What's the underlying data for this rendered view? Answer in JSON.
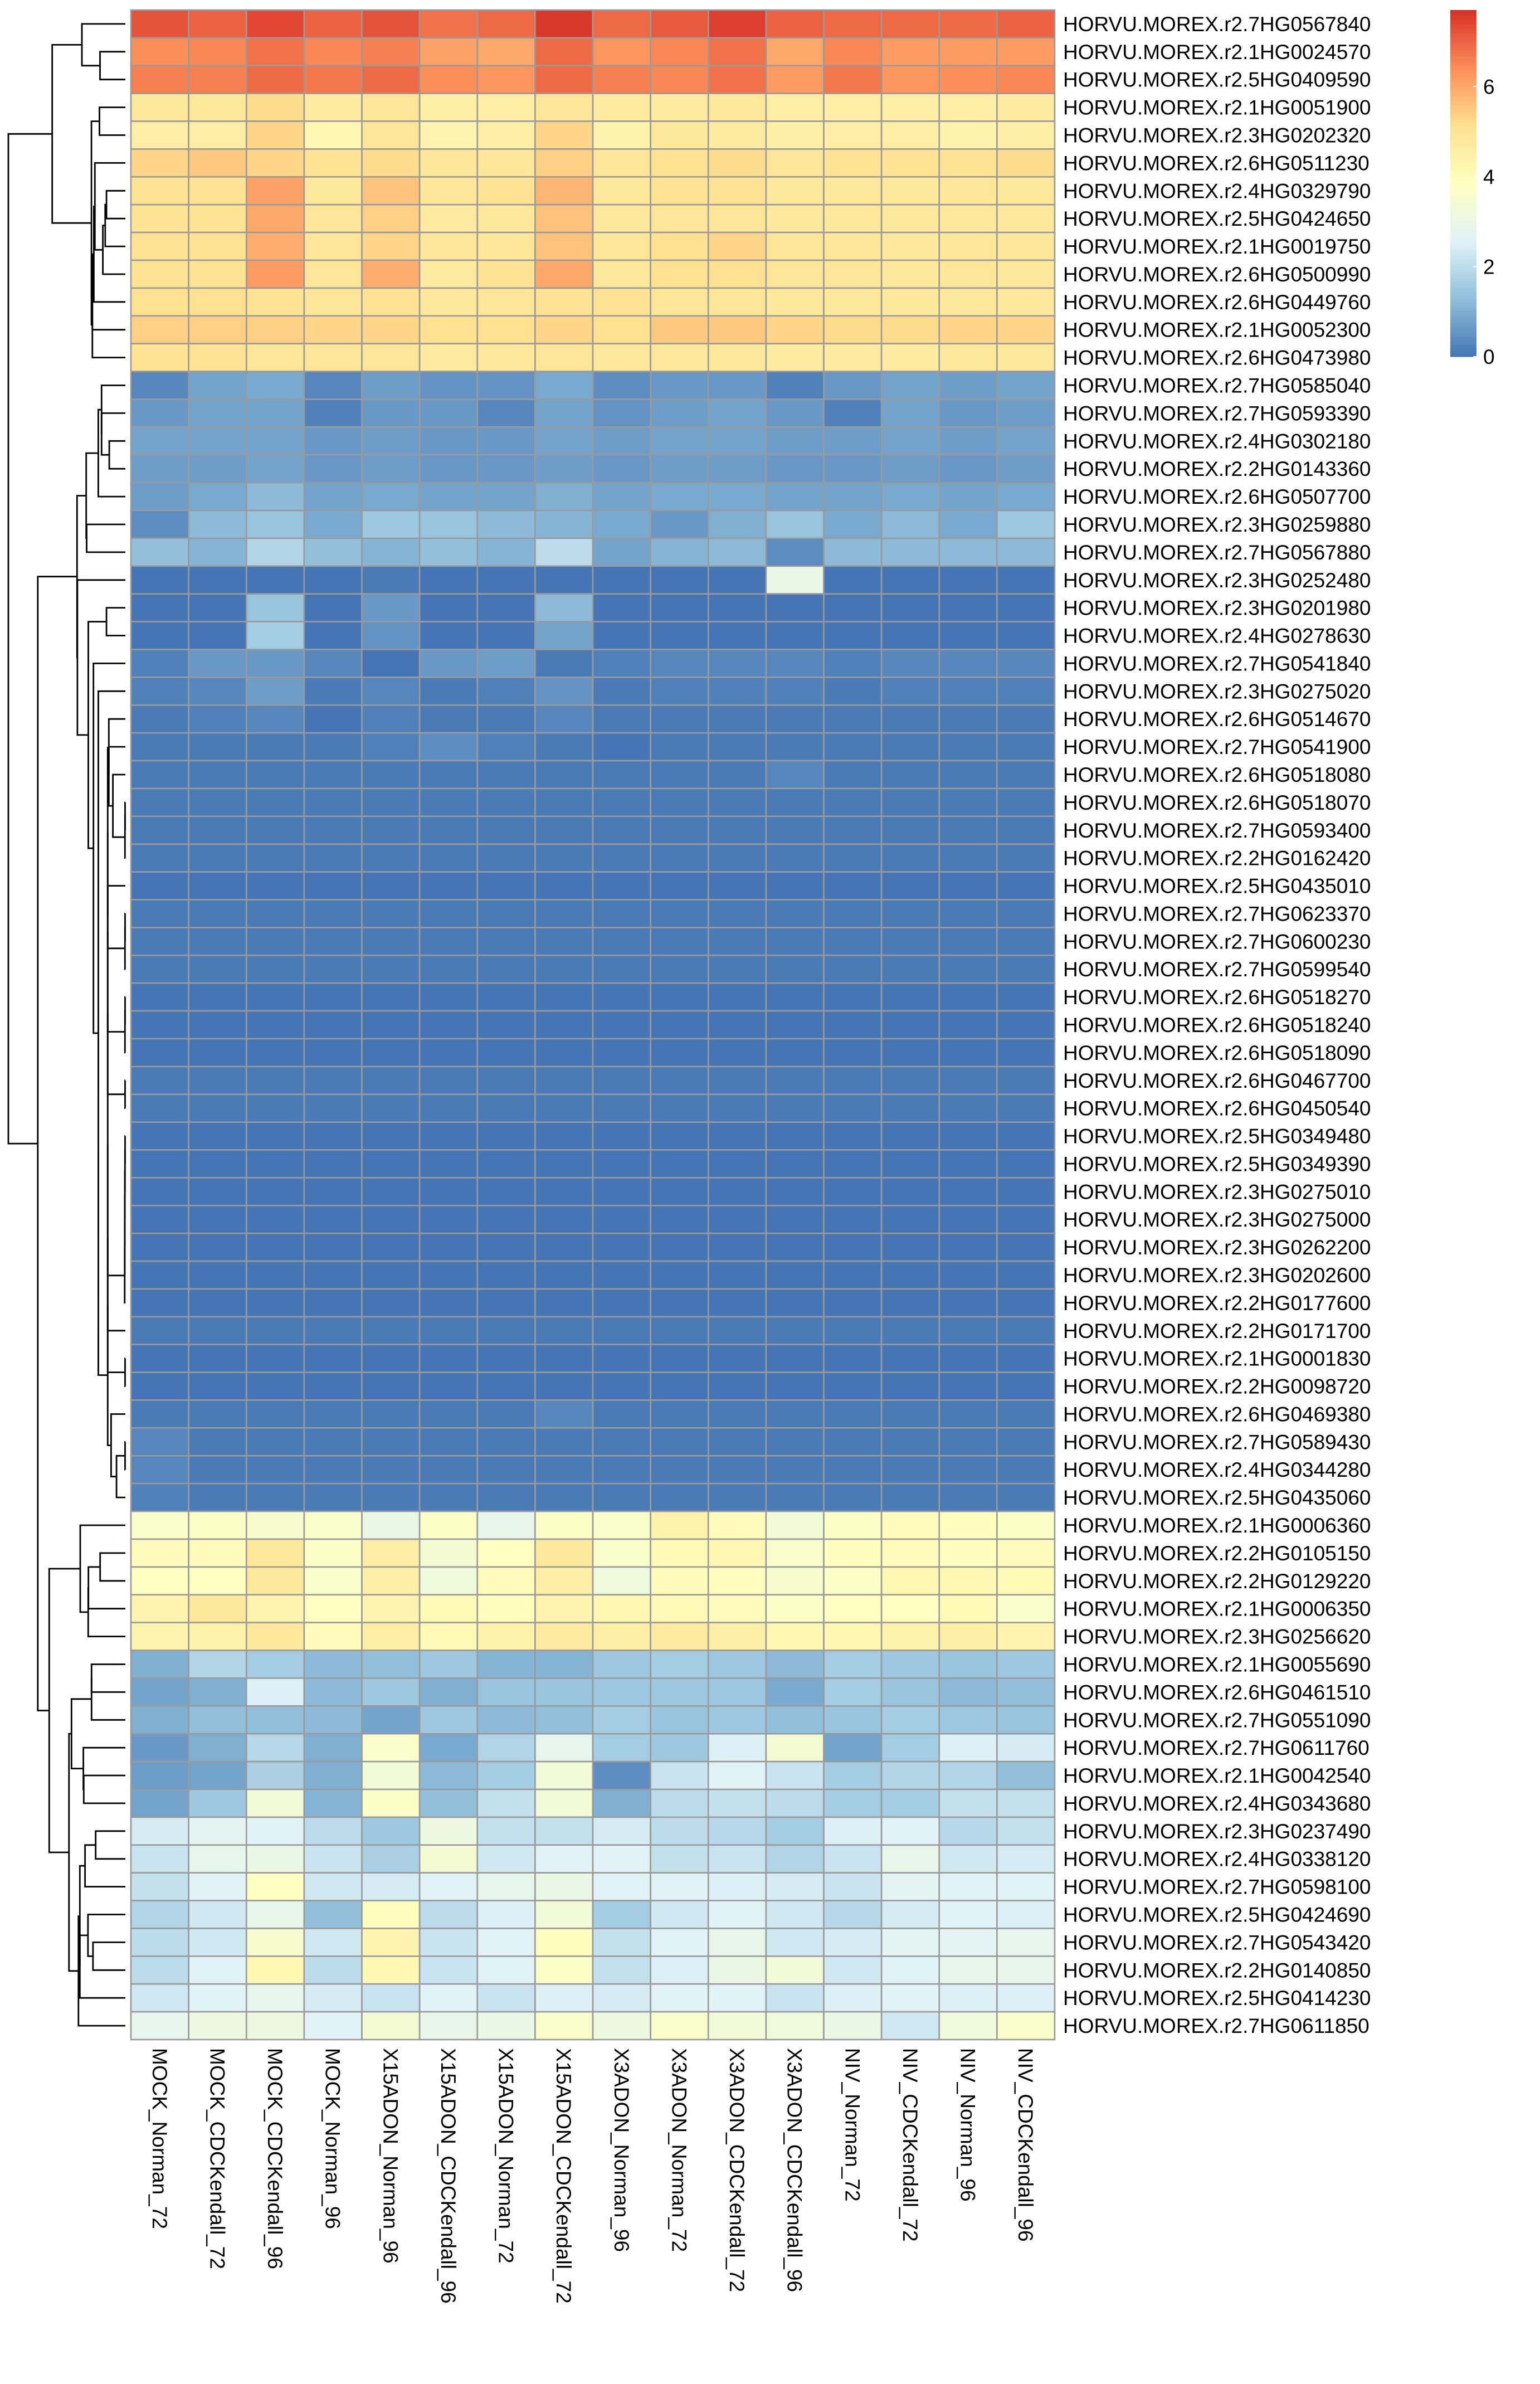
{
  "chart_data": {
    "type": "heatmap",
    "title": "",
    "xlabel": "",
    "ylabel": "",
    "columns": [
      "MOCK_Norman_72",
      "MOCK_CDCKendall_72",
      "MOCK_CDCKendall_96",
      "MOCK_Norman_96",
      "X15ADON_Norman_96",
      "X15ADON_CDCKendall_96",
      "X15ADON_Norman_72",
      "X15ADON_CDCKendall_72",
      "X3ADON_Norman_96",
      "X3ADON_Norman_72",
      "X3ADON_CDCKendall_72",
      "X3ADON_CDCKendall_96",
      "NIV_Norman_72",
      "NIV_CDCKendall_72",
      "NIV_Norman_96",
      "NIV_CDCKendall_96"
    ],
    "rows": [
      "HORVU.MOREX.r2.7HG0567840",
      "HORVU.MOREX.r2.1HG0024570",
      "HORVU.MOREX.r2.5HG0409590",
      "HORVU.MOREX.r2.1HG0051900",
      "HORVU.MOREX.r2.3HG0202320",
      "HORVU.MOREX.r2.6HG0511230",
      "HORVU.MOREX.r2.4HG0329790",
      "HORVU.MOREX.r2.5HG0424650",
      "HORVU.MOREX.r2.1HG0019750",
      "HORVU.MOREX.r2.6HG0500990",
      "HORVU.MOREX.r2.6HG0449760",
      "HORVU.MOREX.r2.1HG0052300",
      "HORVU.MOREX.r2.6HG0473980",
      "HORVU.MOREX.r2.7HG0585040",
      "HORVU.MOREX.r2.7HG0593390",
      "HORVU.MOREX.r2.4HG0302180",
      "HORVU.MOREX.r2.2HG0143360",
      "HORVU.MOREX.r2.6HG0507700",
      "HORVU.MOREX.r2.3HG0259880",
      "HORVU.MOREX.r2.7HG0567880",
      "HORVU.MOREX.r2.3HG0252480",
      "HORVU.MOREX.r2.3HG0201980",
      "HORVU.MOREX.r2.4HG0278630",
      "HORVU.MOREX.r2.7HG0541840",
      "HORVU.MOREX.r2.3HG0275020",
      "HORVU.MOREX.r2.6HG0514670",
      "HORVU.MOREX.r2.7HG0541900",
      "HORVU.MOREX.r2.6HG0518080",
      "HORVU.MOREX.r2.6HG0518070",
      "HORVU.MOREX.r2.7HG0593400",
      "HORVU.MOREX.r2.2HG0162420",
      "HORVU.MOREX.r2.5HG0435010",
      "HORVU.MOREX.r2.7HG0623370",
      "HORVU.MOREX.r2.7HG0600230",
      "HORVU.MOREX.r2.7HG0599540",
      "HORVU.MOREX.r2.6HG0518270",
      "HORVU.MOREX.r2.6HG0518240",
      "HORVU.MOREX.r2.6HG0518090",
      "HORVU.MOREX.r2.6HG0467700",
      "HORVU.MOREX.r2.6HG0450540",
      "HORVU.MOREX.r2.5HG0349480",
      "HORVU.MOREX.r2.5HG0349390",
      "HORVU.MOREX.r2.3HG0275010",
      "HORVU.MOREX.r2.3HG0275000",
      "HORVU.MOREX.r2.3HG0262200",
      "HORVU.MOREX.r2.3HG0202600",
      "HORVU.MOREX.r2.2HG0177600",
      "HORVU.MOREX.r2.2HG0171700",
      "HORVU.MOREX.r2.1HG0001830",
      "HORVU.MOREX.r2.2HG0098720",
      "HORVU.MOREX.r2.6HG0469380",
      "HORVU.MOREX.r2.7HG0589430",
      "HORVU.MOREX.r2.4HG0344280",
      "HORVU.MOREX.r2.5HG0435060",
      "HORVU.MOREX.r2.1HG0006360",
      "HORVU.MOREX.r2.2HG0105150",
      "HORVU.MOREX.r2.2HG0129220",
      "HORVU.MOREX.r2.1HG0006350",
      "HORVU.MOREX.r2.3HG0256620",
      "HORVU.MOREX.r2.1HG0055690",
      "HORVU.MOREX.r2.6HG0461510",
      "HORVU.MOREX.r2.7HG0551090",
      "HORVU.MOREX.r2.7HG0611760",
      "HORVU.MOREX.r2.1HG0042540",
      "HORVU.MOREX.r2.4HG0343680",
      "HORVU.MOREX.r2.3HG0237490",
      "HORVU.MOREX.r2.4HG0338120",
      "HORVU.MOREX.r2.7HG0598100",
      "HORVU.MOREX.r2.5HG0424690",
      "HORVU.MOREX.r2.7HG0543420",
      "HORVU.MOREX.r2.2HG0140850",
      "HORVU.MOREX.r2.5HG0414230",
      "HORVU.MOREX.r2.7HG0611850"
    ],
    "values": [
      [
        7.2,
        7.0,
        7.4,
        7.0,
        7.2,
        6.8,
        6.9,
        7.6,
        6.9,
        7.1,
        7.5,
        7.0,
        6.9,
        6.9,
        6.9,
        7.0
      ],
      [
        6.4,
        6.5,
        6.8,
        6.5,
        6.6,
        6.1,
        6.0,
        6.9,
        6.3,
        6.5,
        6.8,
        6.0,
        6.5,
        6.2,
        6.2,
        6.2
      ],
      [
        6.6,
        6.6,
        6.9,
        6.7,
        6.9,
        6.4,
        6.3,
        6.9,
        6.6,
        6.5,
        6.8,
        6.2,
        6.7,
        6.3,
        6.4,
        6.5
      ],
      [
        4.8,
        4.8,
        5.2,
        4.7,
        4.9,
        4.5,
        4.6,
        4.9,
        4.7,
        4.7,
        4.8,
        4.6,
        4.6,
        4.6,
        4.6,
        4.7
      ],
      [
        4.6,
        4.6,
        5.3,
        4.2,
        4.9,
        4.3,
        4.6,
        5.3,
        4.4,
        4.8,
        4.7,
        4.5,
        4.6,
        4.6,
        4.4,
        4.5
      ],
      [
        5.3,
        5.5,
        5.3,
        5.0,
        5.2,
        4.9,
        4.9,
        5.4,
        4.9,
        5.1,
        5.2,
        4.9,
        5.0,
        5.0,
        5.0,
        5.2
      ],
      [
        5.0,
        5.0,
        6.1,
        4.8,
        5.6,
        4.9,
        5.0,
        5.8,
        4.8,
        5.0,
        5.0,
        4.8,
        4.8,
        4.8,
        4.9,
        4.8
      ],
      [
        5.0,
        5.0,
        6.0,
        4.9,
        5.4,
        4.7,
        4.8,
        5.6,
        4.8,
        4.9,
        4.9,
        4.8,
        4.8,
        4.8,
        4.8,
        4.8
      ],
      [
        5.0,
        5.0,
        5.9,
        4.9,
        5.3,
        4.9,
        4.9,
        5.6,
        4.9,
        5.1,
        5.3,
        4.9,
        4.9,
        4.8,
        4.9,
        4.9
      ],
      [
        5.0,
        5.0,
        6.2,
        4.9,
        5.9,
        4.7,
        5.0,
        6.0,
        4.8,
        5.1,
        5.1,
        4.9,
        4.9,
        4.8,
        4.9,
        4.8
      ],
      [
        5.1,
        5.1,
        5.0,
        4.9,
        5.0,
        4.8,
        4.9,
        5.0,
        5.0,
        4.9,
        4.9,
        4.8,
        4.8,
        4.8,
        4.8,
        4.8
      ],
      [
        5.4,
        5.4,
        5.4,
        5.3,
        5.3,
        5.1,
        5.1,
        5.3,
        5.1,
        5.5,
        5.5,
        5.3,
        5.2,
        5.2,
        5.3,
        5.3
      ],
      [
        5.0,
        5.0,
        4.9,
        4.9,
        4.9,
        4.7,
        4.8,
        4.9,
        4.8,
        4.8,
        4.8,
        4.7,
        4.7,
        4.7,
        4.8,
        4.8
      ],
      [
        0.3,
        0.8,
        0.9,
        0.3,
        0.7,
        0.5,
        0.5,
        0.9,
        0.4,
        0.6,
        0.6,
        0.2,
        0.6,
        0.8,
        0.7,
        0.8
      ],
      [
        0.6,
        0.8,
        0.8,
        0.2,
        0.6,
        0.6,
        0.3,
        0.8,
        0.5,
        0.7,
        0.8,
        0.6,
        0.2,
        0.8,
        0.6,
        0.7
      ],
      [
        0.8,
        0.8,
        0.8,
        0.6,
        0.7,
        0.6,
        0.6,
        0.8,
        0.7,
        0.8,
        0.8,
        0.7,
        0.7,
        0.8,
        0.7,
        0.8
      ],
      [
        0.7,
        0.7,
        0.8,
        0.6,
        0.7,
        0.6,
        0.6,
        0.7,
        0.6,
        0.7,
        0.7,
        0.6,
        0.6,
        0.7,
        0.6,
        0.7
      ],
      [
        0.7,
        0.9,
        1.2,
        0.8,
        0.9,
        0.8,
        0.8,
        1.0,
        0.8,
        0.9,
        0.9,
        0.8,
        0.8,
        0.9,
        0.8,
        0.9
      ],
      [
        0.4,
        1.2,
        1.4,
        0.9,
        1.5,
        1.4,
        1.2,
        1.1,
        0.9,
        0.6,
        1.0,
        1.4,
        0.9,
        1.2,
        0.9,
        1.5
      ],
      [
        1.3,
        1.1,
        1.8,
        1.3,
        1.1,
        1.3,
        1.1,
        2.0,
        0.8,
        1.1,
        1.2,
        0.4,
        1.2,
        1.2,
        1.2,
        1.2
      ],
      [
        0.0,
        0.0,
        0.0,
        0.0,
        0.1,
        0.0,
        0.0,
        0.0,
        0.0,
        0.0,
        0.0,
        3.0,
        0.0,
        0.0,
        0.0,
        0.0
      ],
      [
        0.0,
        0.0,
        1.4,
        0.0,
        0.6,
        0.0,
        0.0,
        1.2,
        0.0,
        0.0,
        0.0,
        0.0,
        0.0,
        0.0,
        0.0,
        0.0
      ],
      [
        0.0,
        0.0,
        1.6,
        0.0,
        0.5,
        0.0,
        0.0,
        0.8,
        0.0,
        0.0,
        0.0,
        0.0,
        0.0,
        0.0,
        0.0,
        0.0
      ],
      [
        0.2,
        0.6,
        0.6,
        0.3,
        0.0,
        0.6,
        0.7,
        0.1,
        0.2,
        0.3,
        0.3,
        0.3,
        0.2,
        0.3,
        0.3,
        0.3
      ],
      [
        0.2,
        0.3,
        0.7,
        0.1,
        0.3,
        0.1,
        0.2,
        0.5,
        0.1,
        0.2,
        0.2,
        0.2,
        0.1,
        0.2,
        0.2,
        0.2
      ],
      [
        0.1,
        0.2,
        0.3,
        0.0,
        0.2,
        0.1,
        0.1,
        0.3,
        0.1,
        0.1,
        0.1,
        0.1,
        0.1,
        0.1,
        0.1,
        0.1
      ],
      [
        0.1,
        0.1,
        0.1,
        0.1,
        0.2,
        0.4,
        0.2,
        0.1,
        0.0,
        0.1,
        0.1,
        0.1,
        0.1,
        0.1,
        0.1,
        0.1
      ],
      [
        0.1,
        0.1,
        0.1,
        0.1,
        0.1,
        0.1,
        0.1,
        0.1,
        0.1,
        0.1,
        0.1,
        0.3,
        0.1,
        0.1,
        0.1,
        0.1
      ],
      [
        0.1,
        0.1,
        0.1,
        0.1,
        0.1,
        0.1,
        0.1,
        0.1,
        0.1,
        0.1,
        0.1,
        0.1,
        0.1,
        0.1,
        0.1,
        0.1
      ],
      [
        0.1,
        0.1,
        0.1,
        0.1,
        0.1,
        0.1,
        0.1,
        0.1,
        0.1,
        0.1,
        0.1,
        0.1,
        0.1,
        0.1,
        0.1,
        0.1
      ],
      [
        0.1,
        0.1,
        0.1,
        0.1,
        0.1,
        0.1,
        0.1,
        0.1,
        0.1,
        0.1,
        0.1,
        0.1,
        0.1,
        0.1,
        0.1,
        0.1
      ],
      [
        0.0,
        0.0,
        0.0,
        0.0,
        0.0,
        0.0,
        0.0,
        0.0,
        0.0,
        0.0,
        0.0,
        0.0,
        0.0,
        0.0,
        0.0,
        0.0
      ],
      [
        0.1,
        0.1,
        0.1,
        0.1,
        0.1,
        0.1,
        0.1,
        0.1,
        0.1,
        0.1,
        0.1,
        0.1,
        0.1,
        0.1,
        0.1,
        0.1
      ],
      [
        0.1,
        0.1,
        0.1,
        0.1,
        0.1,
        0.1,
        0.1,
        0.1,
        0.1,
        0.1,
        0.1,
        0.1,
        0.1,
        0.1,
        0.1,
        0.1
      ],
      [
        0.1,
        0.1,
        0.1,
        0.1,
        0.1,
        0.1,
        0.1,
        0.1,
        0.1,
        0.1,
        0.1,
        0.1,
        0.1,
        0.1,
        0.1,
        0.1
      ],
      [
        0.0,
        0.0,
        0.0,
        0.0,
        0.0,
        0.0,
        0.0,
        0.0,
        0.0,
        0.0,
        0.0,
        0.0,
        0.0,
        0.0,
        0.0,
        0.0
      ],
      [
        0.0,
        0.0,
        0.0,
        0.0,
        0.0,
        0.0,
        0.0,
        0.0,
        0.0,
        0.0,
        0.0,
        0.0,
        0.0,
        0.0,
        0.0,
        0.0
      ],
      [
        0.0,
        0.0,
        0.0,
        0.0,
        0.0,
        0.0,
        0.0,
        0.0,
        0.0,
        0.0,
        0.0,
        0.0,
        0.0,
        0.0,
        0.0,
        0.0
      ],
      [
        0.1,
        0.1,
        0.1,
        0.1,
        0.1,
        0.1,
        0.1,
        0.1,
        0.1,
        0.1,
        0.1,
        0.1,
        0.1,
        0.1,
        0.1,
        0.1
      ],
      [
        0.1,
        0.1,
        0.1,
        0.1,
        0.1,
        0.1,
        0.1,
        0.1,
        0.1,
        0.1,
        0.1,
        0.1,
        0.1,
        0.1,
        0.1,
        0.1
      ],
      [
        0.0,
        0.0,
        0.0,
        0.0,
        0.0,
        0.0,
        0.0,
        0.0,
        0.0,
        0.0,
        0.0,
        0.0,
        0.0,
        0.0,
        0.0,
        0.0
      ],
      [
        0.0,
        0.0,
        0.0,
        0.0,
        0.0,
        0.0,
        0.0,
        0.0,
        0.0,
        0.0,
        0.0,
        0.0,
        0.0,
        0.0,
        0.0,
        0.0
      ],
      [
        0.0,
        0.0,
        0.0,
        0.0,
        0.0,
        0.0,
        0.0,
        0.0,
        0.0,
        0.0,
        0.0,
        0.0,
        0.0,
        0.0,
        0.0,
        0.0
      ],
      [
        0.0,
        0.0,
        0.0,
        0.0,
        0.0,
        0.0,
        0.0,
        0.0,
        0.0,
        0.0,
        0.0,
        0.0,
        0.0,
        0.0,
        0.0,
        0.0
      ],
      [
        0.0,
        0.0,
        0.0,
        0.0,
        0.0,
        0.0,
        0.0,
        0.0,
        0.0,
        0.0,
        0.0,
        0.0,
        0.0,
        0.0,
        0.0,
        0.0
      ],
      [
        0.0,
        0.0,
        0.0,
        0.0,
        0.0,
        0.0,
        0.0,
        0.0,
        0.0,
        0.0,
        0.0,
        0.0,
        0.0,
        0.0,
        0.0,
        0.0
      ],
      [
        0.0,
        0.0,
        0.0,
        0.0,
        0.0,
        0.0,
        0.0,
        0.0,
        0.0,
        0.0,
        0.0,
        0.0,
        0.0,
        0.0,
        0.0,
        0.0
      ],
      [
        0.1,
        0.1,
        0.1,
        0.1,
        0.1,
        0.1,
        0.1,
        0.1,
        0.1,
        0.1,
        0.1,
        0.1,
        0.1,
        0.1,
        0.1,
        0.1
      ],
      [
        0.0,
        0.0,
        0.0,
        0.0,
        0.0,
        0.0,
        0.0,
        0.0,
        0.0,
        0.0,
        0.0,
        0.0,
        0.0,
        0.0,
        0.0,
        0.0
      ],
      [
        0.0,
        0.0,
        0.0,
        0.0,
        0.0,
        0.0,
        0.0,
        0.0,
        0.0,
        0.0,
        0.0,
        0.0,
        0.0,
        0.0,
        0.0,
        0.0
      ],
      [
        0.1,
        0.1,
        0.1,
        0.1,
        0.1,
        0.1,
        0.1,
        0.3,
        0.1,
        0.1,
        0.1,
        0.1,
        0.1,
        0.1,
        0.1,
        0.1
      ],
      [
        0.3,
        0.1,
        0.1,
        0.1,
        0.1,
        0.1,
        0.1,
        0.1,
        0.1,
        0.1,
        0.1,
        0.1,
        0.1,
        0.1,
        0.1,
        0.1
      ],
      [
        0.3,
        0.1,
        0.1,
        0.1,
        0.1,
        0.1,
        0.1,
        0.1,
        0.1,
        0.1,
        0.1,
        0.1,
        0.1,
        0.1,
        0.1,
        0.1
      ],
      [
        0.2,
        0.1,
        0.1,
        0.1,
        0.1,
        0.1,
        0.1,
        0.1,
        0.1,
        0.1,
        0.1,
        0.1,
        0.1,
        0.1,
        0.1,
        0.1
      ],
      [
        3.6,
        3.7,
        3.5,
        3.6,
        3.0,
        3.7,
        2.9,
        3.7,
        3.6,
        4.4,
        4.0,
        3.3,
        3.7,
        4.0,
        3.9,
        3.7
      ],
      [
        4.0,
        4.0,
        4.8,
        3.7,
        4.6,
        3.4,
        3.8,
        4.8,
        3.6,
        4.1,
        4.2,
        3.6,
        3.9,
        4.0,
        3.9,
        4.0
      ],
      [
        3.8,
        3.8,
        4.8,
        3.6,
        4.5,
        3.2,
        4.0,
        4.6,
        3.2,
        4.0,
        3.9,
        3.5,
        3.7,
        4.2,
        4.2,
        4.1
      ],
      [
        4.3,
        4.8,
        4.3,
        3.8,
        4.3,
        4.1,
        3.9,
        4.3,
        4.2,
        4.1,
        4.0,
        3.7,
        3.8,
        3.8,
        4.1,
        3.6
      ],
      [
        4.3,
        4.4,
        4.8,
        4.0,
        4.6,
        4.1,
        4.4,
        4.7,
        4.5,
        4.7,
        4.5,
        4.2,
        4.2,
        4.4,
        4.5,
        4.3
      ],
      [
        1.0,
        1.8,
        1.6,
        1.2,
        1.3,
        1.5,
        1.1,
        1.1,
        1.5,
        1.6,
        1.5,
        1.2,
        1.6,
        1.5,
        1.4,
        1.5
      ],
      [
        0.8,
        1.0,
        2.5,
        1.2,
        1.5,
        1.0,
        1.4,
        1.4,
        1.5,
        1.5,
        1.5,
        0.9,
        1.6,
        1.4,
        1.2,
        1.3
      ],
      [
        1.0,
        1.3,
        1.3,
        1.2,
        0.8,
        1.5,
        1.2,
        1.3,
        1.6,
        1.4,
        1.5,
        1.3,
        1.4,
        1.6,
        1.5,
        1.4
      ],
      [
        0.6,
        1.0,
        1.9,
        1.0,
        3.6,
        0.9,
        1.8,
        2.8,
        1.6,
        1.5,
        2.5,
        3.4,
        0.8,
        1.6,
        2.5,
        2.4
      ],
      [
        0.7,
        0.8,
        1.7,
        1.0,
        3.3,
        1.2,
        1.6,
        3.3,
        0.4,
        2.2,
        2.6,
        2.2,
        1.6,
        1.8,
        1.8,
        1.3
      ],
      [
        0.8,
        1.5,
        3.3,
        1.1,
        3.7,
        1.3,
        2.1,
        3.3,
        1.0,
        2.0,
        2.1,
        2.0,
        1.6,
        1.6,
        2.1,
        2.1
      ],
      [
        2.4,
        2.7,
        2.6,
        2.0,
        1.5,
        3.1,
        2.1,
        2.1,
        2.4,
        2.0,
        1.9,
        1.6,
        2.5,
        2.6,
        1.9,
        2.1
      ],
      [
        2.2,
        2.8,
        3.0,
        2.2,
        1.7,
        3.4,
        2.3,
        2.6,
        2.6,
        2.1,
        2.2,
        1.8,
        2.2,
        2.9,
        2.3,
        2.4
      ],
      [
        2.1,
        2.6,
        3.8,
        2.3,
        2.4,
        2.6,
        2.8,
        3.0,
        2.6,
        2.6,
        2.5,
        2.4,
        2.2,
        2.7,
        2.6,
        2.6
      ],
      [
        1.8,
        2.3,
        2.9,
        1.3,
        3.9,
        2.0,
        2.5,
        3.3,
        1.6,
        2.3,
        2.6,
        2.3,
        1.9,
        2.4,
        2.6,
        2.5
      ],
      [
        2.0,
        2.3,
        3.5,
        2.3,
        4.3,
        2.2,
        2.6,
        3.9,
        2.1,
        2.6,
        2.9,
        2.3,
        2.4,
        2.7,
        2.7,
        2.8
      ],
      [
        2.0,
        2.6,
        4.2,
        2.0,
        4.2,
        2.2,
        2.6,
        3.7,
        2.1,
        2.5,
        3.0,
        3.3,
        2.3,
        2.6,
        2.9,
        2.9
      ],
      [
        2.3,
        2.6,
        2.8,
        2.4,
        2.2,
        2.6,
        2.2,
        2.5,
        2.4,
        2.6,
        2.6,
        2.2,
        2.5,
        2.6,
        2.5,
        2.5
      ],
      [
        2.8,
        3.1,
        3.1,
        2.6,
        3.4,
        2.9,
        3.0,
        3.6,
        3.1,
        3.6,
        3.3,
        3.2,
        3.0,
        2.3,
        3.2,
        3.6
      ]
    ],
    "legend": {
      "ticks": [
        0,
        2,
        4,
        6
      ],
      "min": 0,
      "max": 7.7,
      "placement": "top-right"
    },
    "colors": [
      "#4575b4",
      "#91bfdb",
      "#e0f3f8",
      "#ffffbf",
      "#fee090",
      "#fc8d59",
      "#d73027"
    ],
    "grid_color": "#9a9a9a"
  }
}
